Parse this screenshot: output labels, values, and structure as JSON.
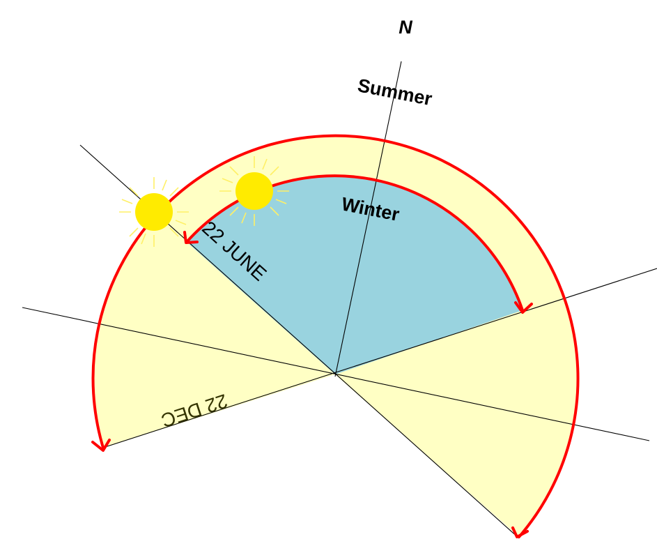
{
  "labels": {
    "north": "N",
    "summer": "Summer",
    "winter": "Winter",
    "june": "22 JUNE",
    "december": "22 DEC"
  },
  "colors": {
    "summer_region": "#FFFFC4",
    "winter_region": "#99D3DF",
    "arc": "#FF0000",
    "sun": "#FFEB00",
    "sun_rays": "#FFF066",
    "lines": "#000000",
    "december_text": "#333300"
  },
  "icons": [
    "sun-icon",
    "sun-icon"
  ]
}
